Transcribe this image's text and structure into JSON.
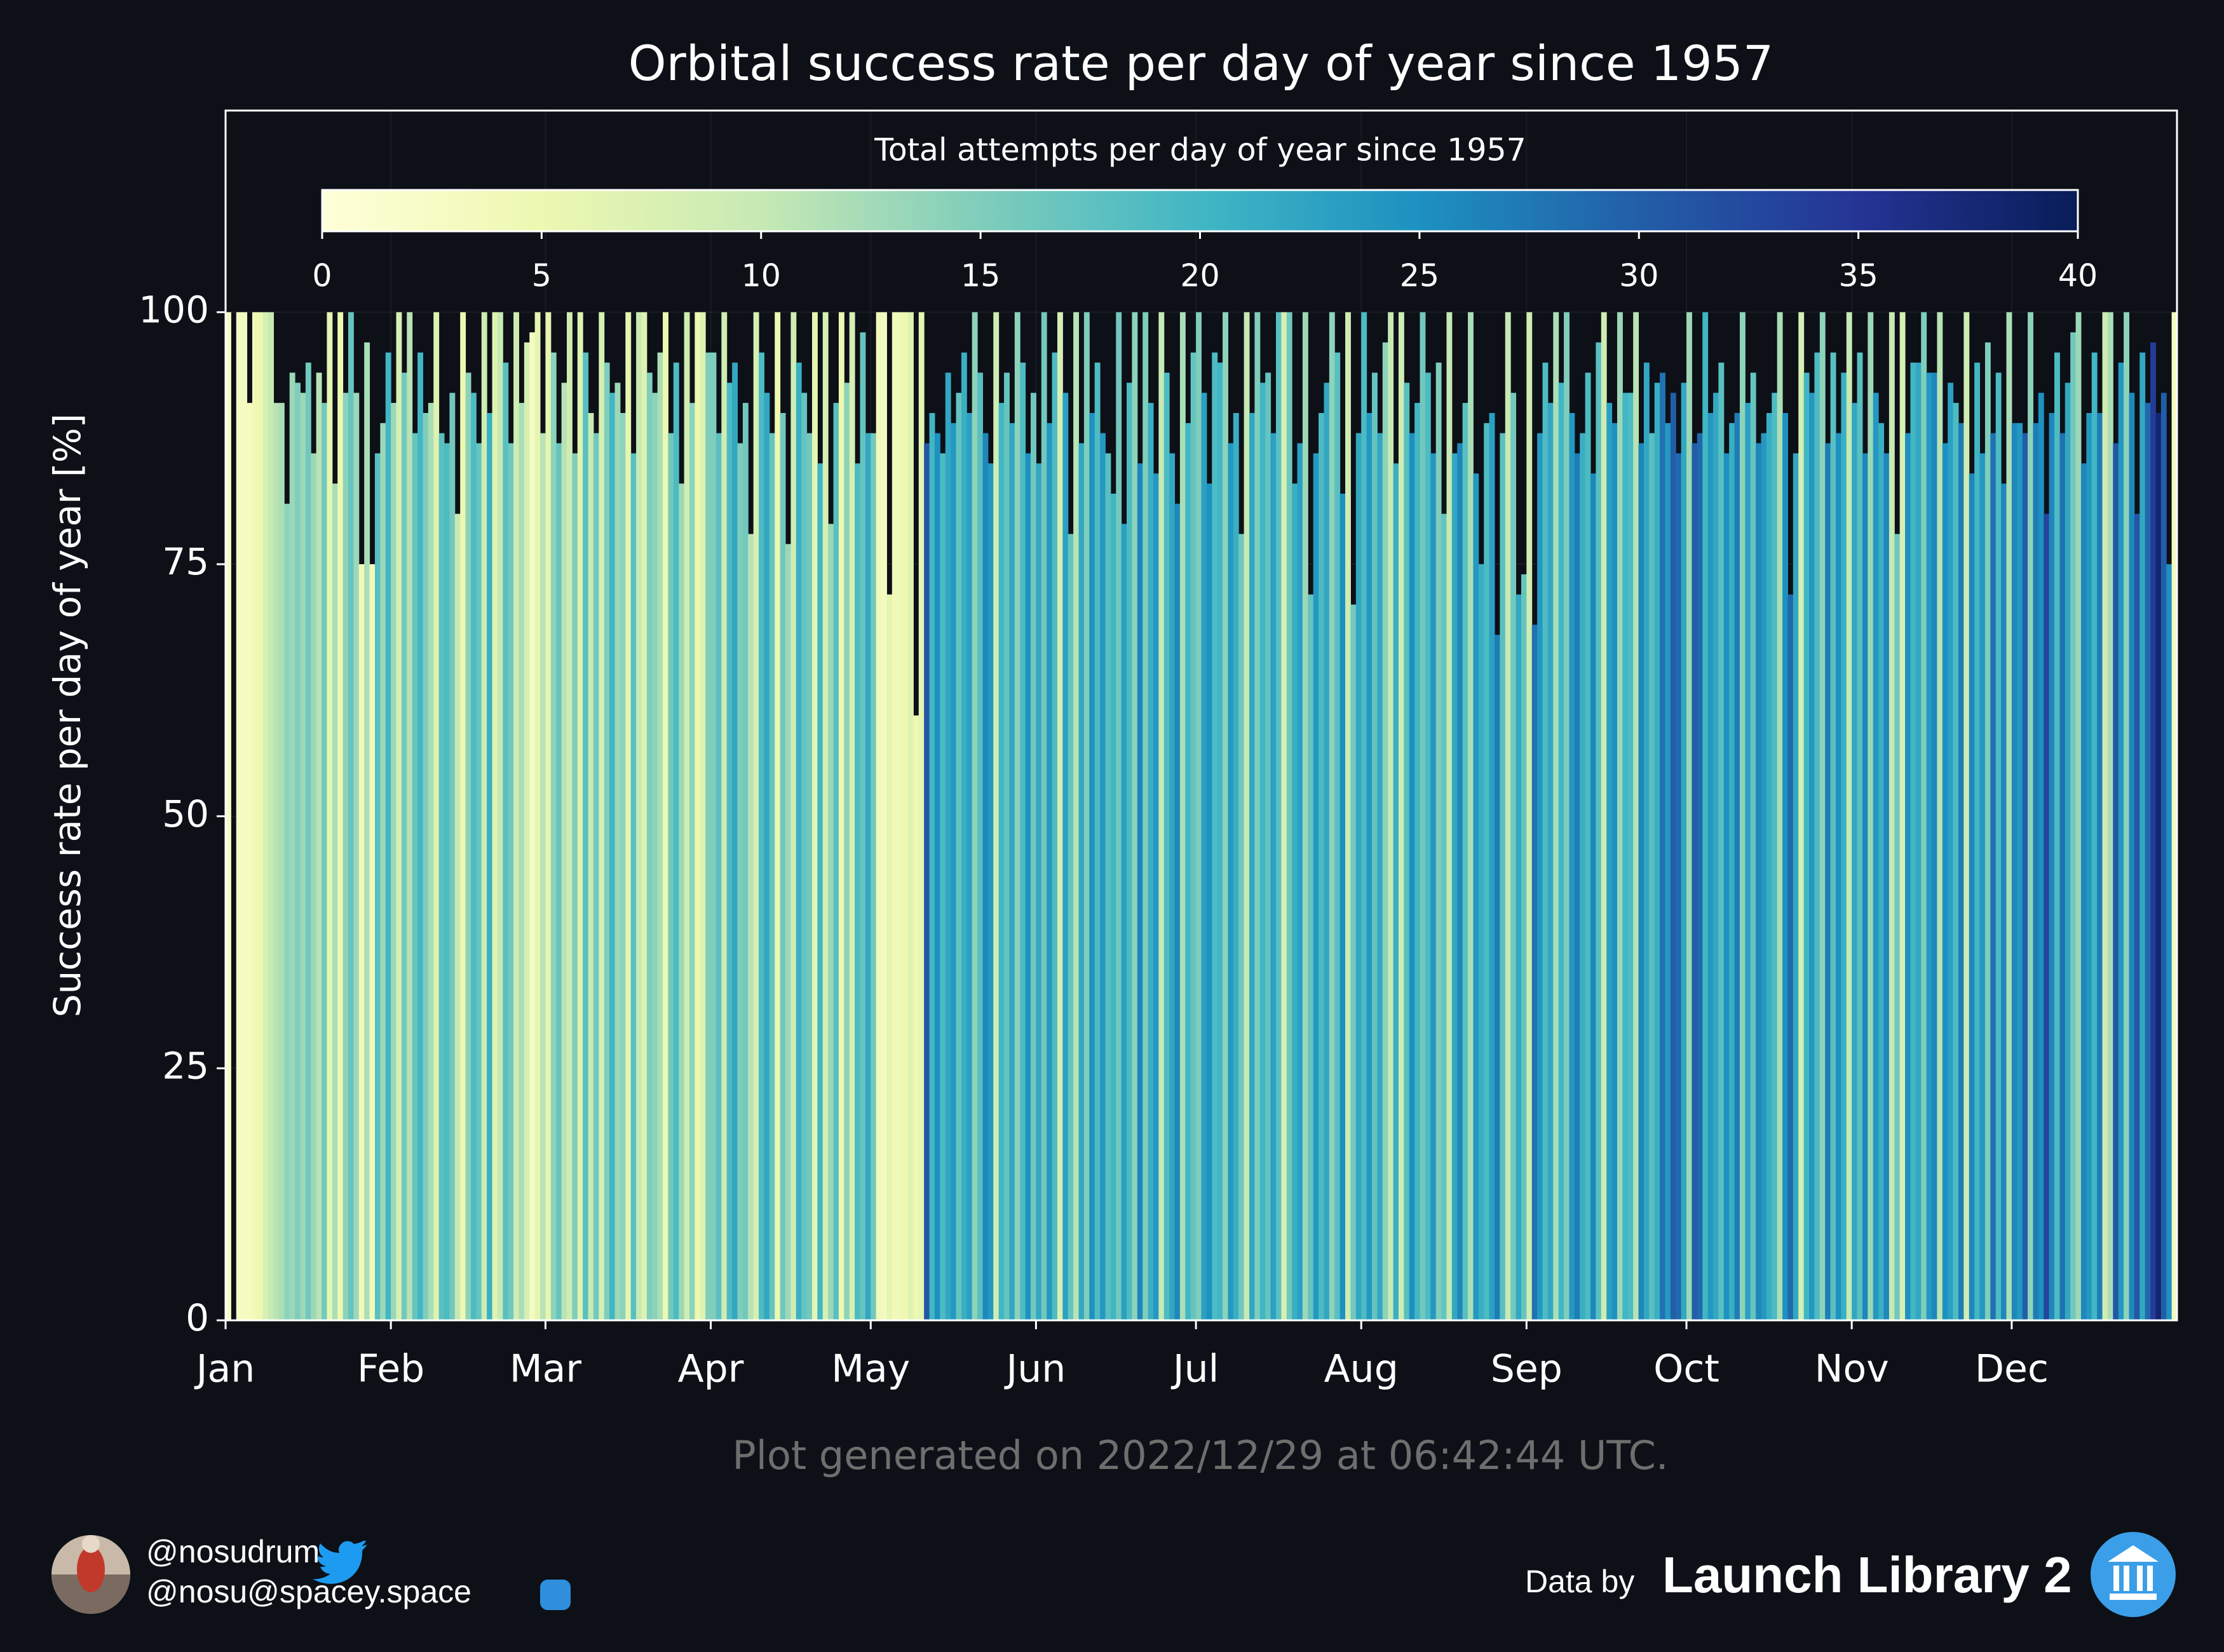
{
  "chart_data": {
    "type": "bar",
    "title": "Orbital success rate per day of year since 1957",
    "ylabel": "Success rate per day of year [%]",
    "colorbar_label": "Total attempts per day of year since 1957",
    "footer": "Plot generated on 2022/12/29 at 06:42:44 UTC.",
    "credits": {
      "twitter": "@nosudrum",
      "mastodon": "@nosu@spacey.space",
      "data_by": "Data by",
      "source": "Launch Library 2"
    },
    "xlim": [
      0,
      366
    ],
    "xticks": [
      {
        "value": 0,
        "label": "Jan"
      },
      {
        "value": 31,
        "label": "Feb"
      },
      {
        "value": 60,
        "label": "Mar"
      },
      {
        "value": 91,
        "label": "Apr"
      },
      {
        "value": 121,
        "label": "May"
      },
      {
        "value": 152,
        "label": "Jun"
      },
      {
        "value": 182,
        "label": "Jul"
      },
      {
        "value": 213,
        "label": "Aug"
      },
      {
        "value": 244,
        "label": "Sep"
      },
      {
        "value": 274,
        "label": "Oct"
      },
      {
        "value": 305,
        "label": "Nov"
      },
      {
        "value": 335,
        "label": "Dec"
      }
    ],
    "ylim": [
      0,
      120
    ],
    "yticks": [
      0,
      25,
      50,
      75,
      100
    ],
    "clim": [
      0,
      40
    ],
    "cticks": [
      0,
      5,
      10,
      15,
      20,
      25,
      30,
      35,
      40
    ],
    "colormap": [
      "#ffffd9",
      "#edf8b1",
      "#c7e9b4",
      "#7fcdbb",
      "#41b6c4",
      "#1d91c0",
      "#225ea8",
      "#253494",
      "#081d58"
    ],
    "grid": true,
    "x": [
      0,
      1,
      2,
      3,
      4,
      5,
      6,
      7,
      8,
      9,
      10,
      11,
      12,
      13,
      14,
      15,
      16,
      17,
      18,
      19,
      20,
      21,
      22,
      23,
      24,
      25,
      26,
      27,
      28,
      29,
      30,
      31,
      32,
      33,
      34,
      35,
      36,
      37,
      38,
      39,
      40,
      41,
      42,
      43,
      44,
      45,
      46,
      47,
      48,
      49,
      50,
      51,
      52,
      53,
      54,
      55,
      56,
      57,
      58,
      59,
      60,
      61,
      62,
      63,
      64,
      65,
      66,
      67,
      68,
      69,
      70,
      71,
      72,
      73,
      74,
      75,
      76,
      77,
      78,
      79,
      80,
      81,
      82,
      83,
      84,
      85,
      86,
      87,
      88,
      89,
      90,
      91,
      92,
      93,
      94,
      95,
      96,
      97,
      98,
      99,
      100,
      101,
      102,
      103,
      104,
      105,
      106,
      107,
      108,
      109,
      110,
      111,
      112,
      113,
      114,
      115,
      116,
      117,
      118,
      119,
      120,
      121,
      122,
      123,
      124,
      125,
      126,
      127,
      128,
      129,
      130,
      131,
      132,
      133,
      134,
      135,
      136,
      137,
      138,
      139,
      140,
      141,
      142,
      143,
      144,
      145,
      146,
      147,
      148,
      149,
      150,
      151,
      152,
      153,
      154,
      155,
      156,
      157,
      158,
      159,
      160,
      161,
      162,
      163,
      164,
      165,
      166,
      167,
      168,
      169,
      170,
      171,
      172,
      173,
      174,
      175,
      176,
      177,
      178,
      179,
      180,
      181,
      182,
      183,
      184,
      185,
      186,
      187,
      188,
      189,
      190,
      191,
      192,
      193,
      194,
      195,
      196,
      197,
      198,
      199,
      200,
      201,
      202,
      203,
      204,
      205,
      206,
      207,
      208,
      209,
      210,
      211,
      212,
      213,
      214,
      215,
      216,
      217,
      218,
      219,
      220,
      221,
      222,
      223,
      224,
      225,
      226,
      227,
      228,
      229,
      230,
      231,
      232,
      233,
      234,
      235,
      236,
      237,
      238,
      239,
      240,
      241,
      242,
      243,
      244,
      245,
      246,
      247,
      248,
      249,
      250,
      251,
      252,
      253,
      254,
      255,
      256,
      257,
      258,
      259,
      260,
      261,
      262,
      263,
      264,
      265,
      266,
      267,
      268,
      269,
      270,
      271,
      272,
      273,
      274,
      275,
      276,
      277,
      278,
      279,
      280,
      281,
      282,
      283,
      284,
      285,
      286,
      287,
      288,
      289,
      290,
      291,
      292,
      293,
      294,
      295,
      296,
      297,
      298,
      299,
      300,
      301,
      302,
      303,
      304,
      305,
      306,
      307,
      308,
      309,
      310,
      311,
      312,
      313,
      314,
      315,
      316,
      317,
      318,
      319,
      320,
      321,
      322,
      323,
      324,
      325,
      326,
      327,
      328,
      329,
      330,
      331,
      332,
      333,
      334,
      335,
      336,
      337,
      338,
      339,
      340,
      341,
      342,
      343,
      344,
      345,
      346,
      347,
      348,
      349,
      350,
      351,
      352,
      353,
      354,
      355,
      356,
      357,
      358,
      359,
      360,
      361,
      362,
      363,
      364,
      365
    ],
    "values": [
      100,
      null,
      100,
      100,
      91,
      100,
      100,
      100,
      100,
      91,
      91,
      81,
      94,
      93,
      92,
      95,
      86,
      94,
      91,
      100,
      83,
      100,
      92,
      100,
      92,
      75,
      97,
      75,
      86,
      89,
      96,
      91,
      100,
      94,
      100,
      88,
      96,
      90,
      91,
      100,
      88,
      87,
      92,
      80,
      100,
      94,
      92,
      87,
      100,
      90,
      100,
      100,
      95,
      87,
      100,
      91,
      97,
      98,
      100,
      88,
      100,
      96,
      87,
      93,
      100,
      86,
      100,
      96,
      90,
      88,
      100,
      95,
      92,
      93,
      90,
      100,
      86,
      100,
      100,
      94,
      92,
      96,
      100,
      88,
      95,
      83,
      100,
      91,
      100,
      100,
      96,
      96,
      88,
      100,
      93,
      95,
      87,
      91,
      78,
      100,
      96,
      92,
      88,
      100,
      90,
      77,
      100,
      95,
      92,
      88,
      100,
      85,
      100,
      79,
      91,
      100,
      93,
      100,
      85,
      98,
      88,
      88,
      100,
      100,
      72,
      100,
      100,
      100,
      100,
      60,
      100,
      87,
      90,
      88,
      86,
      94,
      89,
      92,
      96,
      90,
      100,
      94,
      88,
      85,
      100,
      91,
      94,
      89,
      100,
      95,
      86,
      92,
      85,
      100,
      89,
      96,
      100,
      92,
      78,
      100,
      87,
      100,
      90,
      95,
      88,
      86,
      82,
      100,
      79,
      93,
      100,
      85,
      100,
      91,
      84,
      100,
      94,
      86,
      81,
      100,
      89,
      96,
      100,
      92,
      83,
      96,
      95,
      100,
      87,
      90,
      78,
      100,
      90,
      100,
      93,
      94,
      88,
      100,
      100,
      100,
      83,
      87,
      100,
      72,
      86,
      90,
      93,
      100,
      96,
      82,
      100,
      71,
      88,
      100,
      90,
      94,
      88,
      97,
      100,
      85,
      100,
      93,
      88,
      91,
      100,
      94,
      86,
      95,
      80,
      100,
      86,
      87,
      91,
      100,
      84,
      75,
      89,
      90,
      68,
      88,
      100,
      92,
      72,
      74,
      100,
      69,
      88,
      95,
      91,
      100,
      93,
      100,
      90,
      86,
      88,
      94,
      84,
      97,
      100,
      91,
      89,
      100,
      92,
      92,
      100,
      87,
      95,
      88,
      93,
      94,
      89,
      92,
      86,
      93,
      100,
      87,
      88,
      100,
      90,
      92,
      95,
      86,
      89,
      90,
      100,
      91,
      94,
      87,
      88,
      90,
      92,
      100,
      90,
      72,
      86,
      100,
      94,
      92,
      96,
      100,
      87,
      96,
      88,
      94,
      100,
      91,
      96,
      86,
      100,
      92,
      89,
      86,
      100,
      78,
      100,
      88,
      95,
      95,
      100,
      94,
      94,
      100,
      87,
      93,
      91,
      89,
      100,
      84,
      95,
      86,
      97,
      88,
      94,
      83,
      100,
      89,
      89,
      88,
      100,
      89,
      92,
      80,
      90,
      96,
      88,
      93,
      98,
      100,
      85,
      90,
      96,
      90,
      100,
      100,
      87,
      95,
      100,
      92,
      80,
      96,
      91,
      97,
      90,
      92,
      75,
      100
    ],
    "color_values": [
      2,
      null,
      3,
      3,
      3,
      4,
      5,
      8,
      10,
      11,
      12,
      14,
      13,
      15,
      13,
      16,
      13,
      11,
      16,
      6,
      12,
      5,
      14,
      17,
      13,
      4,
      12,
      4,
      18,
      13,
      20,
      13,
      8,
      16,
      11,
      17,
      20,
      15,
      12,
      7,
      18,
      19,
      16,
      10,
      5,
      14,
      19,
      17,
      9,
      21,
      7,
      10,
      18,
      16,
      9,
      12,
      8,
      3,
      6,
      11,
      6,
      14,
      17,
      11,
      9,
      15,
      7,
      18,
      10,
      16,
      8,
      15,
      20,
      13,
      14,
      6,
      18,
      10,
      7,
      15,
      14,
      12,
      5,
      16,
      19,
      13,
      9,
      14,
      5,
      7,
      15,
      15,
      18,
      9,
      19,
      22,
      15,
      16,
      11,
      8,
      19,
      22,
      17,
      5,
      16,
      13,
      9,
      21,
      17,
      16,
      6,
      20,
      8,
      13,
      18,
      5,
      14,
      8,
      19,
      17,
      22,
      16,
      4,
      3,
      6,
      4,
      4,
      5,
      7,
      5,
      6,
      31,
      20,
      25,
      19,
      22,
      24,
      17,
      21,
      23,
      14,
      18,
      26,
      24,
      9,
      20,
      17,
      22,
      14,
      19,
      25,
      16,
      22,
      16,
      24,
      19,
      8,
      23,
      17,
      11,
      22,
      15,
      25,
      19,
      24,
      18,
      20,
      16,
      23,
      19,
      14,
      26,
      15,
      21,
      24,
      10,
      19,
      22,
      26,
      12,
      20,
      17,
      15,
      23,
      25,
      19,
      20,
      14,
      24,
      21,
      16,
      10,
      22,
      15,
      20,
      17,
      23,
      18,
      8,
      16,
      21,
      23,
      13,
      17,
      24,
      19,
      22,
      14,
      18,
      25,
      9,
      16,
      22,
      19,
      24,
      17,
      22,
      14,
      10,
      21,
      9,
      18,
      25,
      20,
      16,
      19,
      24,
      15,
      17,
      10,
      22,
      26,
      18,
      12,
      24,
      21,
      19,
      23,
      27,
      18,
      10,
      16,
      22,
      17,
      9,
      28,
      24,
      19,
      22,
      12,
      20,
      15,
      24,
      27,
      21,
      19,
      26,
      18,
      9,
      23,
      25,
      13,
      20,
      19,
      11,
      26,
      22,
      18,
      21,
      28,
      24,
      30,
      29,
      22,
      13,
      30,
      29,
      20,
      24,
      22,
      18,
      25,
      21,
      27,
      14,
      23,
      17,
      26,
      24,
      21,
      19,
      12,
      25,
      29,
      22,
      8,
      20,
      24,
      19,
      14,
      27,
      18,
      25,
      21,
      10,
      22,
      18,
      26,
      13,
      24,
      21,
      26,
      10,
      16,
      8,
      25,
      20,
      22,
      15,
      24,
      26,
      11,
      25,
      23,
      19,
      27,
      9,
      26,
      20,
      24,
      15,
      28,
      19,
      26,
      12,
      26,
      24,
      30,
      14,
      27,
      25,
      33,
      26,
      19,
      28,
      22,
      16,
      13,
      26,
      24,
      20,
      27,
      9,
      12,
      31,
      24,
      14,
      26,
      31,
      22,
      29,
      34,
      38,
      30,
      25,
      3
    ]
  }
}
